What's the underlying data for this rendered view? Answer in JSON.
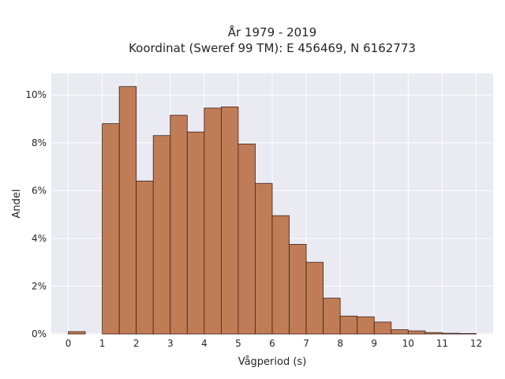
{
  "chart_data": {
    "type": "bar",
    "title_line1": "År 1979 - 2019",
    "title_line2": "Koordinat (Sweref 99 TM): E 456469, N 6162773",
    "xlabel": "Vågperiod (s)",
    "ylabel": "Andel",
    "xlim": [
      -0.5,
      12.5
    ],
    "ylim": [
      0,
      10.9
    ],
    "x_ticks": [
      0,
      1,
      2,
      3,
      4,
      5,
      6,
      7,
      8,
      9,
      10,
      11,
      12
    ],
    "y_ticks": [
      0,
      2,
      4,
      6,
      8,
      10
    ],
    "y_tick_labels": [
      "0%",
      "2%",
      "4%",
      "6%",
      "8%",
      "10%"
    ],
    "bin_width": 0.5,
    "bins": [
      {
        "start": 0.0,
        "value": 0.1
      },
      {
        "start": 0.5,
        "value": 0.0
      },
      {
        "start": 1.0,
        "value": 8.8
      },
      {
        "start": 1.5,
        "value": 10.35
      },
      {
        "start": 2.0,
        "value": 6.4
      },
      {
        "start": 2.5,
        "value": 8.3
      },
      {
        "start": 3.0,
        "value": 9.15
      },
      {
        "start": 3.5,
        "value": 8.45
      },
      {
        "start": 4.0,
        "value": 9.45
      },
      {
        "start": 4.5,
        "value": 9.5
      },
      {
        "start": 5.0,
        "value": 7.95
      },
      {
        "start": 5.5,
        "value": 6.3
      },
      {
        "start": 6.0,
        "value": 4.95
      },
      {
        "start": 6.5,
        "value": 3.75
      },
      {
        "start": 7.0,
        "value": 3.0
      },
      {
        "start": 7.5,
        "value": 1.5
      },
      {
        "start": 8.0,
        "value": 0.75
      },
      {
        "start": 8.5,
        "value": 0.72
      },
      {
        "start": 9.0,
        "value": 0.5
      },
      {
        "start": 9.5,
        "value": 0.18
      },
      {
        "start": 10.0,
        "value": 0.13
      },
      {
        "start": 10.5,
        "value": 0.06
      },
      {
        "start": 11.0,
        "value": 0.03
      },
      {
        "start": 11.5,
        "value": 0.02
      }
    ],
    "grid": true,
    "colors": {
      "bar_fill": "#c07c57",
      "bar_edge": "#3d2418",
      "plot_bg": "#eaeaf2",
      "grid": "#ffffff"
    }
  }
}
